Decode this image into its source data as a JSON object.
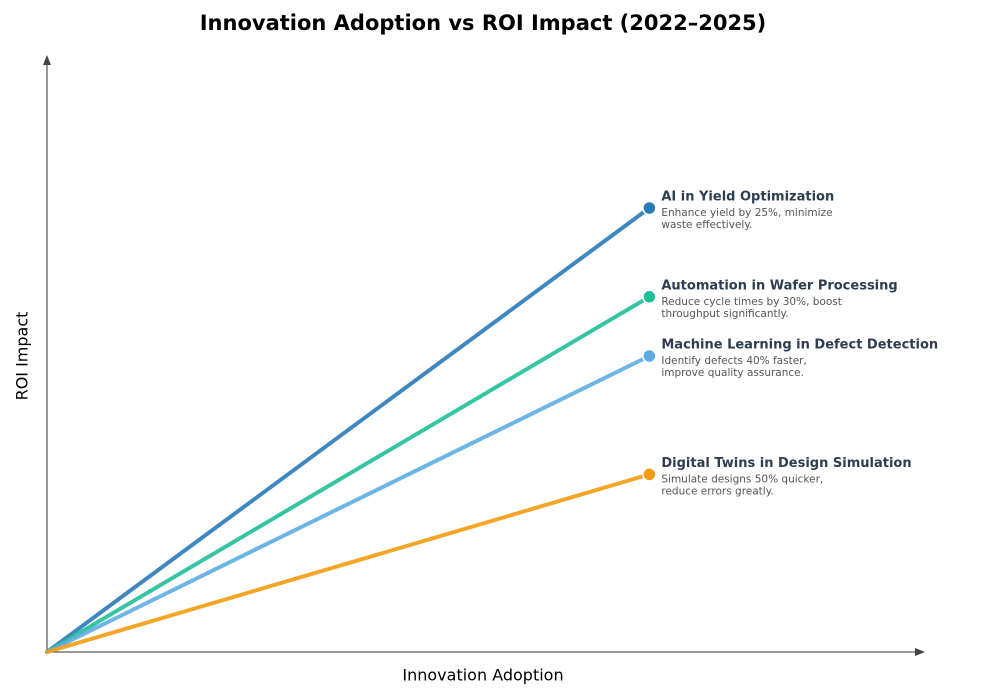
{
  "chart_data": {
    "type": "line",
    "title": "Innovation Adoption vs ROI Impact (2022–2025)",
    "x_label": "Innovation Adoption",
    "y_label": "ROI Impact",
    "xlim": [
      0,
      100
    ],
    "ylim": [
      0,
      100
    ],
    "series": [
      {
        "name": "AI in Yield Optimization",
        "color": "#2a7ab8",
        "x": [
          0,
          69
        ],
        "values": [
          0,
          75
        ],
        "note_lines": [
          "Enhance yield by 25%, minimize",
          "waste effectively."
        ]
      },
      {
        "name": "Automation in Wafer Processing",
        "color": "#1fbf98",
        "x": [
          0,
          69
        ],
        "values": [
          0,
          60
        ],
        "note_lines": [
          "Reduce cycle times by 30%, boost",
          "throughput significantly."
        ]
      },
      {
        "name": "Machine Learning in Defect Detection",
        "color": "#5dade2",
        "x": [
          0,
          69
        ],
        "values": [
          0,
          50
        ],
        "note_lines": [
          "Identify defects 40% faster,",
          "improve quality assurance."
        ]
      },
      {
        "name": "Digital Twins in Design Simulation",
        "color": "#f39c12",
        "x": [
          0,
          69
        ],
        "values": [
          0,
          30
        ],
        "note_lines": [
          "Simulate designs 50% quicker,",
          "reduce errors greatly."
        ]
      }
    ]
  }
}
